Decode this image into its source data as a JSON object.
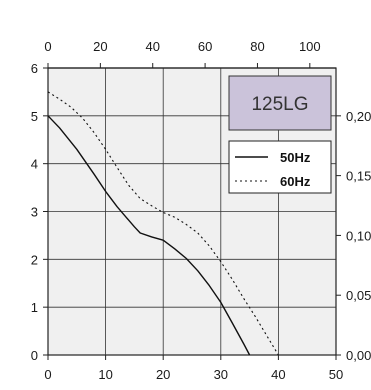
{
  "model_label": "125LG",
  "colors": {
    "plot_background": "#f0f0f0",
    "model_box_fill": "#cbc3da",
    "line": "#111111"
  },
  "chart_data": {
    "type": "line",
    "title": "",
    "xlabel": "",
    "ylabel": "",
    "grid": true,
    "legend_placement": "top-right",
    "axes": {
      "bottom": {
        "min": 0,
        "max": 50,
        "ticks": [
          "0",
          "10",
          "20",
          "30",
          "40",
          "50"
        ]
      },
      "top": {
        "min": 0,
        "max": 110,
        "ticks": [
          "0",
          "20",
          "40",
          "60",
          "80",
          "100"
        ]
      },
      "left": {
        "min": 0,
        "max": 6,
        "ticks": [
          "0",
          "1",
          "2",
          "3",
          "4",
          "5",
          "6"
        ]
      },
      "right": {
        "min": 0,
        "max": 0.24,
        "ticks": [
          "0,00",
          "0,05",
          "0,10",
          "0,15",
          "0,20"
        ]
      }
    },
    "series": [
      {
        "name": "50Hz",
        "style": "solid",
        "x": [
          0,
          2,
          5,
          8,
          10,
          12,
          14,
          15,
          16,
          18,
          20,
          22,
          24,
          26,
          28,
          30,
          32,
          34,
          35
        ],
        "y": [
          5.0,
          4.75,
          4.3,
          3.78,
          3.42,
          3.1,
          2.82,
          2.68,
          2.55,
          2.47,
          2.4,
          2.22,
          2.02,
          1.76,
          1.45,
          1.1,
          0.67,
          0.23,
          0.0
        ]
      },
      {
        "name": "60Hz",
        "style": "dotted",
        "x": [
          0,
          2,
          4,
          6,
          8,
          10,
          12,
          14,
          16,
          18,
          20,
          22,
          24,
          26,
          28,
          30,
          32,
          34,
          36,
          38,
          40
        ],
        "y": [
          5.5,
          5.35,
          5.18,
          4.95,
          4.65,
          4.3,
          3.92,
          3.55,
          3.27,
          3.12,
          2.98,
          2.88,
          2.73,
          2.55,
          2.28,
          1.95,
          1.58,
          1.18,
          0.8,
          0.4,
          0.0
        ]
      }
    ]
  }
}
